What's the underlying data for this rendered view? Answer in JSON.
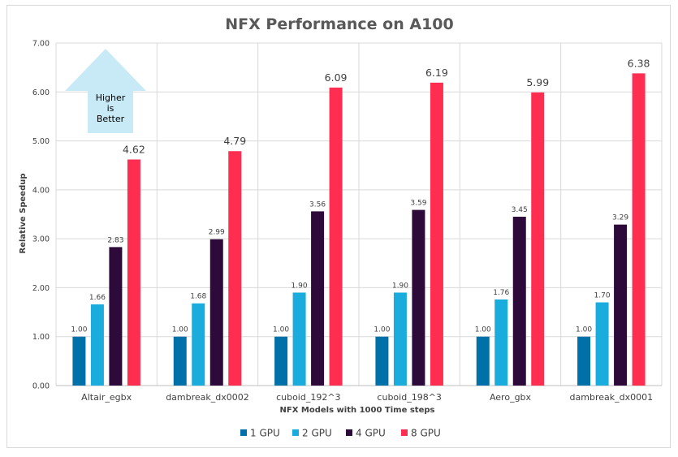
{
  "chart_data": {
    "type": "bar",
    "title": "NFX Performance on A100",
    "xlabel": "NFX Models with 1000 Time steps",
    "ylabel": "Relative Speedup",
    "ylim": [
      0,
      7
    ],
    "yticks": [
      "0.00",
      "1.00",
      "2.00",
      "3.00",
      "4.00",
      "5.00",
      "6.00",
      "7.00"
    ],
    "grid": true,
    "legend_position": "bottom",
    "categories": [
      "Altair_egbx",
      "dambreak_dx0002",
      "cuboid_192^3",
      "cuboid_198^3",
      "Aero_gbx",
      "dambreak_dx0001"
    ],
    "series": [
      {
        "name": "1 GPU",
        "color": "#0070a8",
        "values": [
          1.0,
          1.0,
          1.0,
          1.0,
          1.0,
          1.0
        ]
      },
      {
        "name": "2 GPU",
        "color": "#1aacdc",
        "values": [
          1.66,
          1.68,
          1.9,
          1.9,
          1.76,
          1.7
        ]
      },
      {
        "name": "4 GPU",
        "color": "#2d0a3a",
        "values": [
          2.83,
          2.99,
          3.56,
          3.59,
          3.45,
          3.29
        ]
      },
      {
        "name": "8 GPU",
        "color": "#ff2d50",
        "values": [
          4.62,
          4.79,
          6.09,
          6.19,
          5.99,
          6.38
        ]
      }
    ],
    "annotation": {
      "lines": [
        "Higher",
        "is",
        "Better"
      ],
      "shape": "up-arrow",
      "color": "#c8eaf6"
    }
  }
}
